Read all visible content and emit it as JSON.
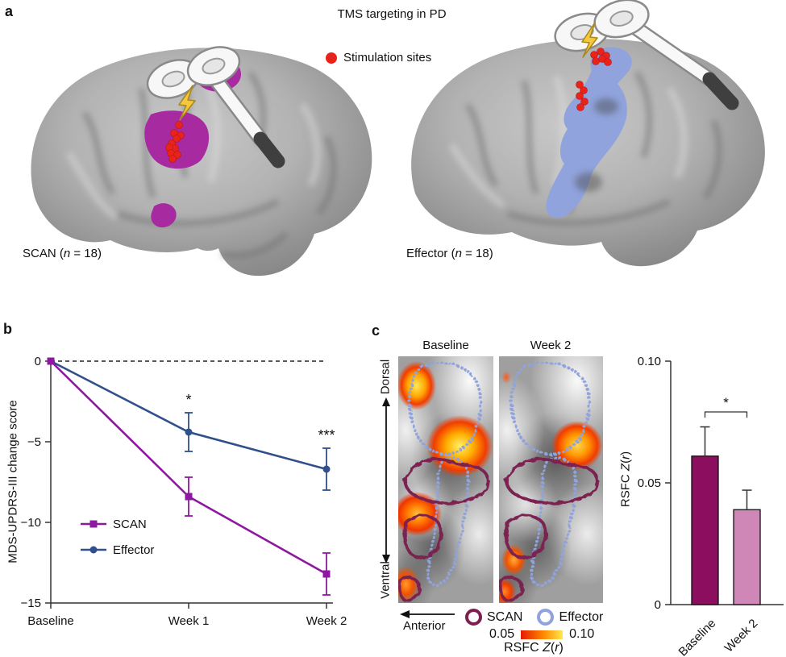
{
  "figure": {
    "panel_a_label": "a",
    "panel_b_label": "b",
    "panel_c_label": "c"
  },
  "panel_a": {
    "title": "TMS targeting in PD",
    "stim_legend": "Stimulation sites",
    "stim_color": "#e8231c",
    "scan_caption": {
      "pre": "SCAN (",
      "n": "n",
      "post": " = 18)"
    },
    "effector_caption": {
      "pre": "Effector (",
      "n": "n",
      "post": " = 18)"
    },
    "scan_patch_color": "#a82aa0",
    "effector_patch_color": "#90a3dc"
  },
  "panel_b": {
    "ylabel": "MDS-UPDRS-III change score"
  },
  "panel_c": {
    "map_titles": [
      "Baseline",
      "Week 2"
    ],
    "dorsal": "Dorsal",
    "ventral": "Ventral",
    "anterior": "Anterior",
    "roi_legend": [
      {
        "name": "SCAN",
        "color": "#7b2051"
      },
      {
        "name": "Effector",
        "color": "#90a3dc"
      }
    ],
    "colorbar": {
      "min": "0.05",
      "max": "0.10"
    },
    "rsfc_label": {
      "pre": "RSFC ",
      "z": "Z",
      "open": "(",
      "r": "r",
      "close": ")"
    }
  },
  "chart_data": [
    {
      "type": "line",
      "categories": [
        "Baseline",
        "Week 1",
        "Week 2"
      ],
      "series": [
        {
          "name": "SCAN",
          "color": "#8e18a0",
          "marker": "square",
          "values": [
            0,
            -8.4,
            -13.2
          ],
          "errors": [
            0,
            1.2,
            1.3
          ]
        },
        {
          "name": "Effector",
          "color": "#30508c",
          "marker": "circle",
          "values": [
            0,
            -4.4,
            -6.7
          ],
          "errors": [
            0,
            1.2,
            1.3
          ]
        }
      ],
      "title": "",
      "xlabel": "",
      "ylabel": "MDS-UPDRS-III change score",
      "ylim": [
        -15,
        0
      ],
      "yticks": [
        {
          "v": 0,
          "label": "0"
        },
        {
          "v": -5,
          "label": "−5"
        },
        {
          "v": -10,
          "label": "−10"
        },
        {
          "v": -15,
          "label": "−15"
        }
      ],
      "zero_line": true,
      "grid": false,
      "legend_position": "lower-left",
      "annotations": [
        {
          "category": "Week 1",
          "text": "*"
        },
        {
          "category": "Week 2",
          "text": "***"
        }
      ]
    },
    {
      "type": "bar",
      "categories": [
        "Baseline",
        "Week 2"
      ],
      "values": [
        0.061,
        0.039
      ],
      "errors": [
        0.012,
        0.008
      ],
      "bar_colors": [
        "#8c0e5e",
        "#cf87b8"
      ],
      "title": "",
      "xlabel": "",
      "ylabel": "RSFC Z(r)",
      "ylim": [
        0,
        0.1
      ],
      "yticks": [
        {
          "v": 0,
          "label": "0"
        },
        {
          "v": 0.05,
          "label": "0.05"
        },
        {
          "v": 0.1,
          "label": "0.10"
        }
      ],
      "grid": false,
      "significance": {
        "pair": [
          0,
          1
        ],
        "text": "*"
      }
    }
  ]
}
